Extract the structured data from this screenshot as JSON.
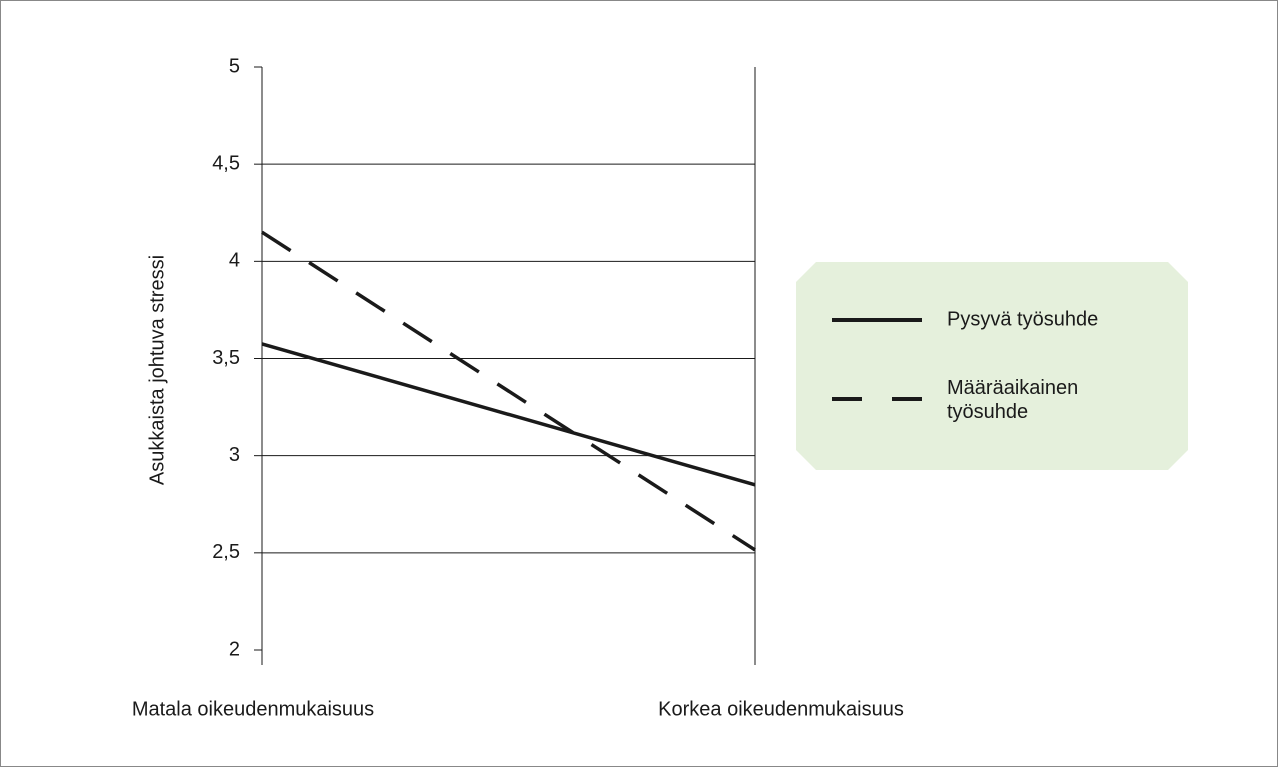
{
  "chart_data": {
    "type": "line",
    "ylabel": "Asukkaista johtuva stressi",
    "categories": [
      "Matala oikeudenmukaisuus",
      "Korkea oikeudenmukaisuus"
    ],
    "series": [
      {
        "name": "Pysyvä työsuhde",
        "color": "#1a1a1a",
        "dash": "solid",
        "values": [
          3.575,
          2.85
        ]
      },
      {
        "name": "Määräaikainen työsuhde",
        "color": "#1a1a1a",
        "dash": "dashed",
        "values": [
          4.15,
          2.515
        ]
      }
    ],
    "ylim": [
      2,
      5
    ],
    "yticks": [
      2,
      {
        "value": 2.5,
        "label": "2,5"
      },
      3,
      {
        "value": 3.5,
        "label": "3,5"
      },
      4,
      {
        "value": 4.5,
        "label": "4,5"
      },
      5
    ],
    "grid": true,
    "legend": "right"
  }
}
